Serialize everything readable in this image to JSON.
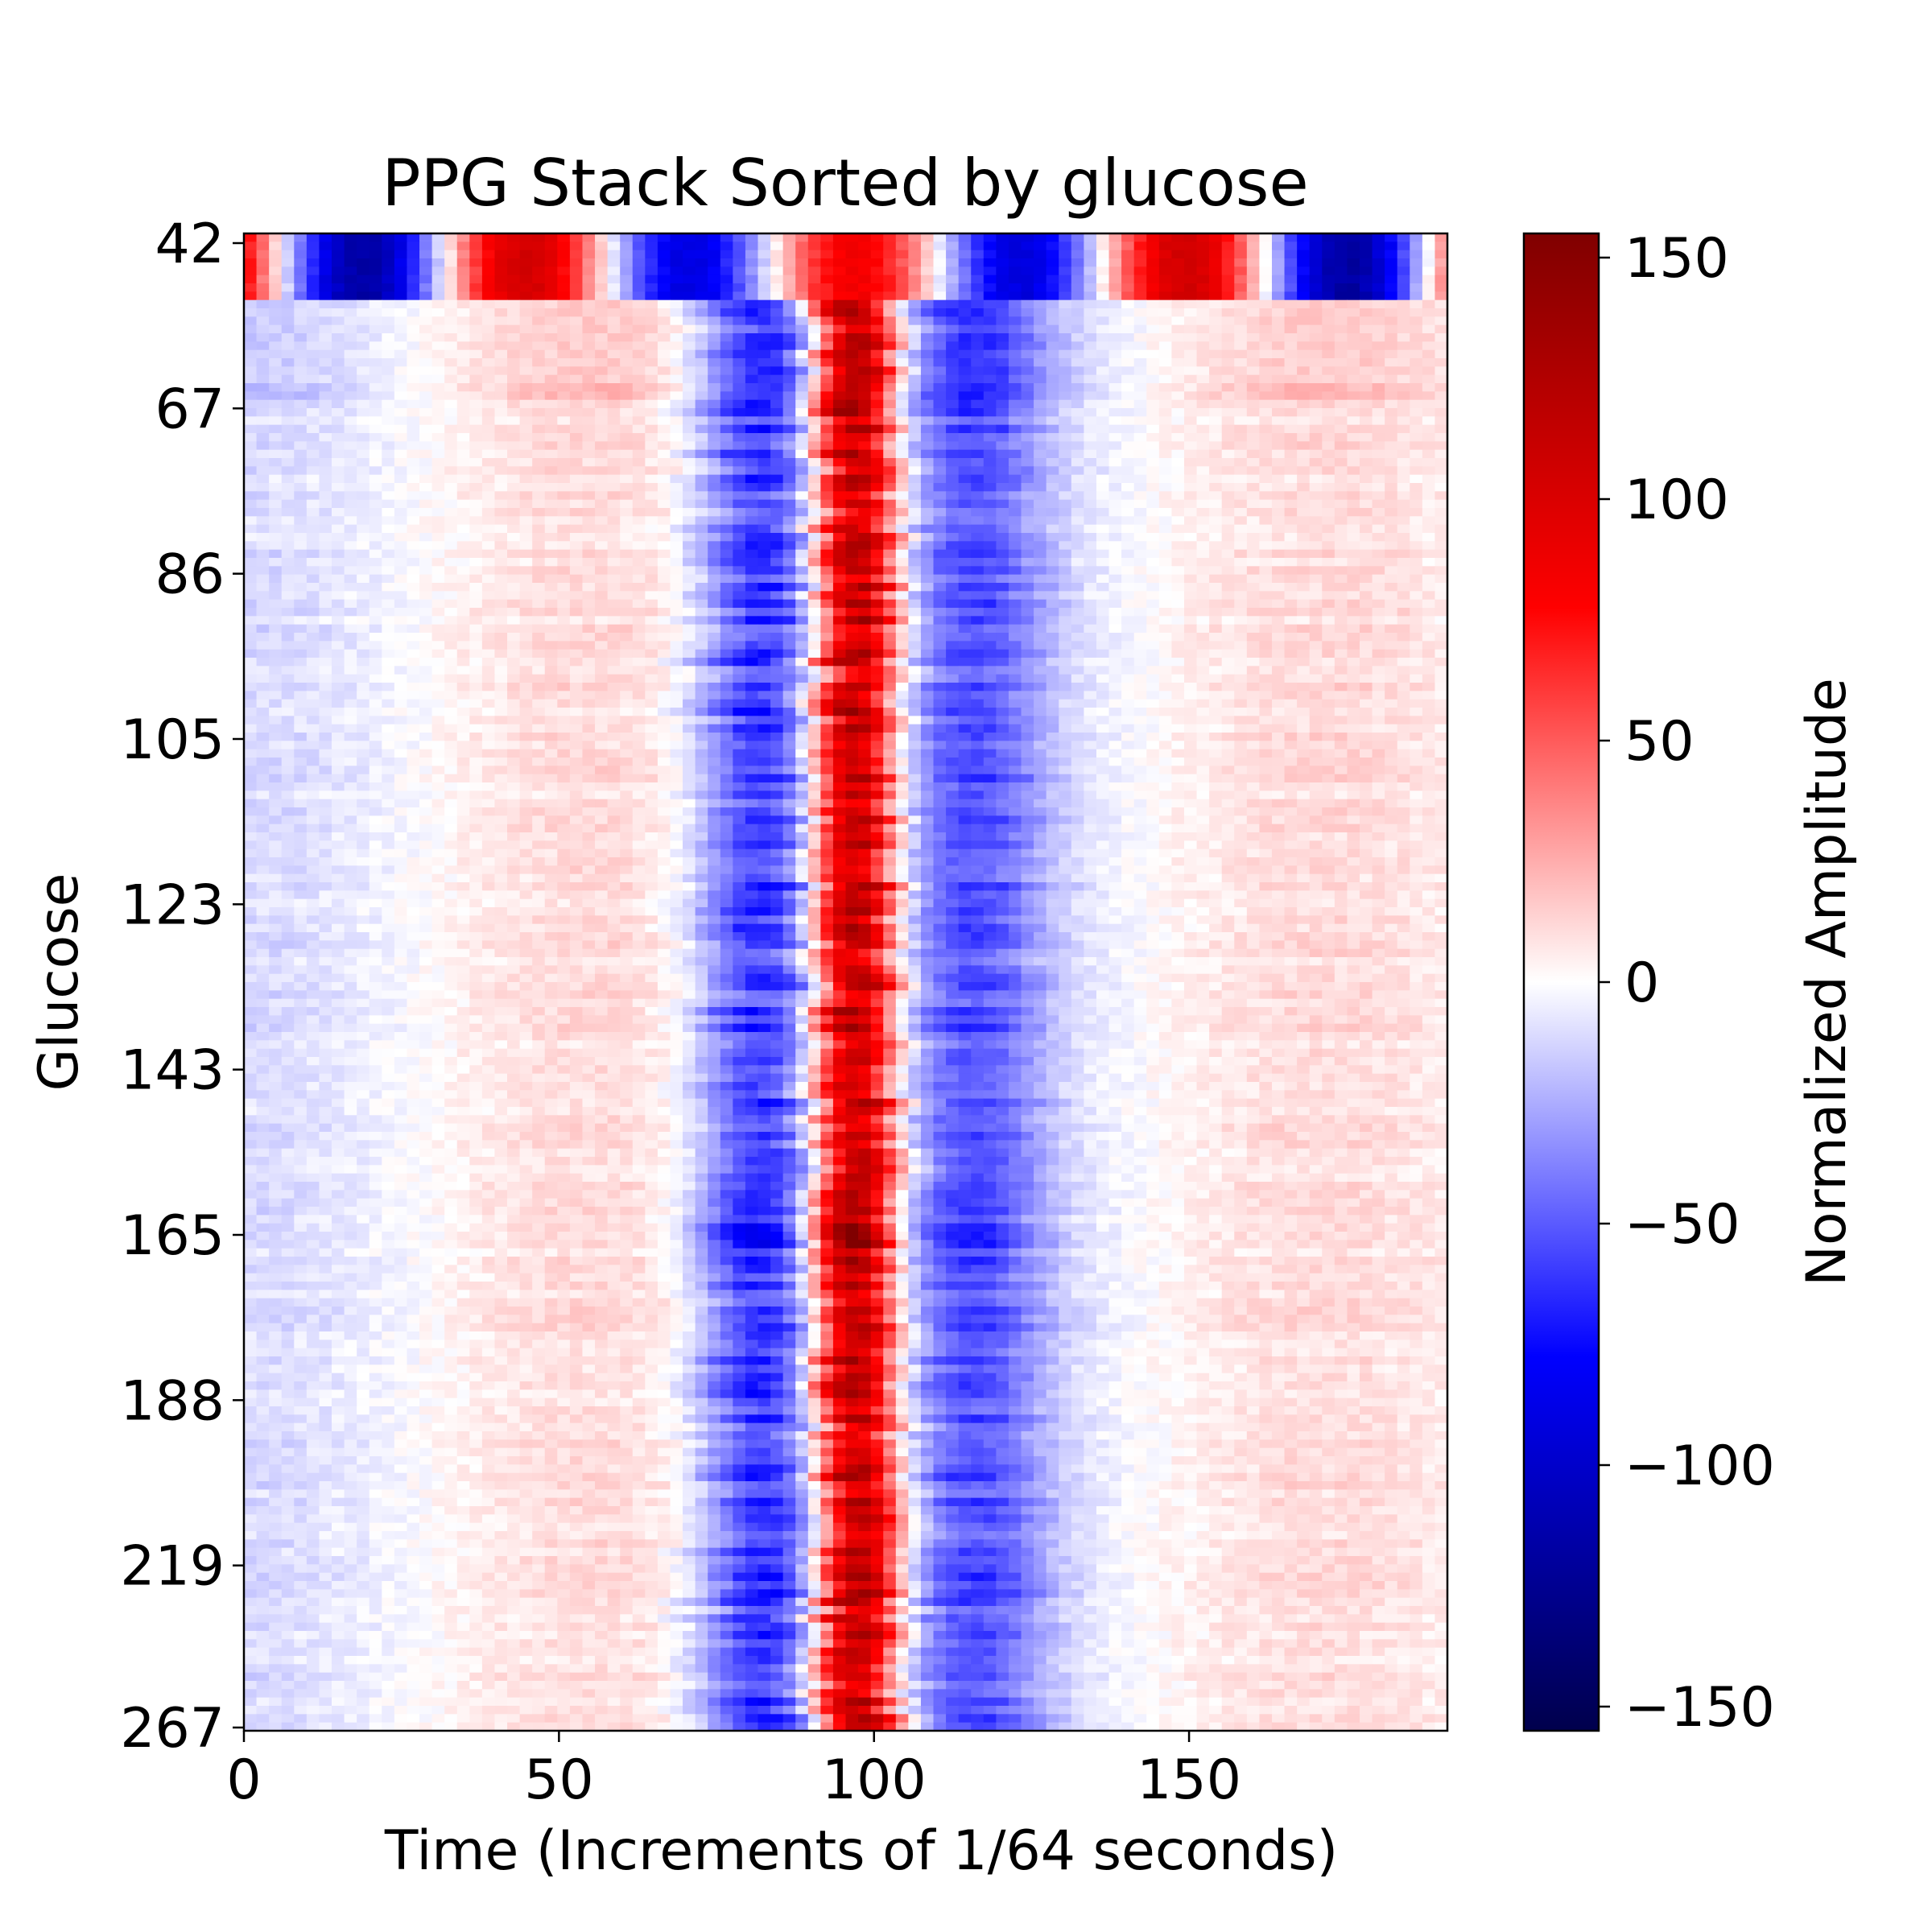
{
  "chart_data": {
    "type": "heatmap",
    "title": "PPG Stack Sorted by glucose",
    "xlabel": "Time (Increments of 1/64 seconds)",
    "ylabel": "Glucose",
    "colorbar_label": "Normalized Amplitude",
    "xlim": [
      0,
      191
    ],
    "x_ticks": [
      0,
      50,
      100,
      150
    ],
    "y_tick_labels": [
      "42",
      "67",
      "86",
      "105",
      "123",
      "143",
      "165",
      "188",
      "219",
      "267"
    ],
    "colorbar_range": [
      -155,
      155
    ],
    "colorbar_ticks": [
      150,
      100,
      50,
      0,
      -50,
      -100,
      -150
    ],
    "colormap": "seismic",
    "colors": {
      "low": "#00004c",
      "mid_low": "#0000ff",
      "zero": "#ffffff",
      "mid_high": "#ff0000",
      "high": "#800000"
    },
    "n_rows": 180,
    "description_of_pattern": "",
    "peak_time": 97,
    "trough_time": 82
  }
}
